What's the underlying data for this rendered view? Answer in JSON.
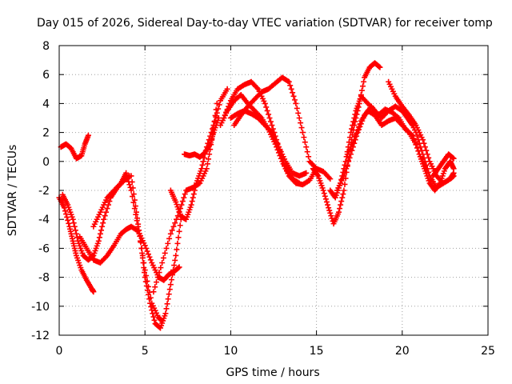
{
  "chart_data": {
    "type": "scatter",
    "title": "Day 015 of 2026, Sidereal Day-to-day VTEC variation (SDTVAR) for receiver tomp",
    "xlabel": "GPS time / hours",
    "ylabel": "SDTVAR / TECUs",
    "xlim": [
      0,
      25
    ],
    "ylim": [
      -12,
      8
    ],
    "xticks": [
      0,
      5,
      10,
      15,
      20,
      25
    ],
    "yticks": [
      -12,
      -10,
      -8,
      -6,
      -4,
      -2,
      0,
      2,
      4,
      6,
      8
    ],
    "grid": true,
    "marker": "plus",
    "color": "#ff0000",
    "series": [
      {
        "x": [
          0.0,
          0.3,
          0.6,
          0.8,
          1.0,
          1.3,
          1.6,
          1.9,
          2.0
        ],
        "y": [
          -2.5,
          -3.2,
          -4.5,
          -5.5,
          -6.5,
          -7.5,
          -8.2,
          -8.8,
          -9.0
        ]
      },
      {
        "x": [
          0.1,
          0.4,
          0.7,
          1.0,
          1.3,
          1.5,
          1.7
        ],
        "y": [
          1.0,
          1.2,
          0.9,
          0.2,
          0.4,
          1.2,
          1.8
        ]
      },
      {
        "x": [
          0.2,
          0.5,
          0.8,
          1.1,
          1.4,
          1.7,
          2.0,
          2.3,
          2.6,
          3.0,
          3.4,
          3.8,
          4.1
        ],
        "y": [
          -2.3,
          -3.0,
          -4.0,
          -5.5,
          -6.5,
          -6.8,
          -6.5,
          -5.5,
          -4.0,
          -2.5,
          -1.8,
          -1.3,
          -1.0
        ]
      },
      {
        "x": [
          1.2,
          1.6,
          2.0,
          2.4,
          2.8,
          3.2,
          3.6,
          3.9,
          4.2,
          4.6,
          5.0,
          5.4,
          5.8,
          6.1,
          6.4,
          6.7,
          7.0
        ],
        "y": [
          -5.2,
          -6.0,
          -6.8,
          -7.0,
          -6.5,
          -5.8,
          -5.0,
          -4.7,
          -4.5,
          -4.8,
          -5.8,
          -7.0,
          -8.0,
          -8.2,
          -7.8,
          -7.6,
          -7.3
        ]
      },
      {
        "x": [
          2.0,
          2.4,
          2.8,
          3.2,
          3.6,
          3.9,
          4.2,
          4.6,
          5.0,
          5.4,
          5.8,
          6.0
        ],
        "y": [
          -4.5,
          -3.5,
          -2.5,
          -2.0,
          -1.5,
          -0.8,
          -2.0,
          -4.5,
          -7.5,
          -9.8,
          -10.8,
          -11.0
        ]
      },
      {
        "x": [
          4.2,
          4.5,
          4.8,
          5.0,
          5.3,
          5.6,
          5.9,
          6.2,
          6.5,
          6.8,
          7.1
        ],
        "y": [
          -1.0,
          -3.5,
          -6.0,
          -8.0,
          -9.8,
          -11.2,
          -11.5,
          -10.5,
          -8.5,
          -6.5,
          -4.0
        ]
      },
      {
        "x": [
          5.5,
          6.0,
          6.5,
          7.0,
          7.4,
          7.8,
          8.2,
          8.6,
          8.9,
          9.2
        ],
        "y": [
          -9.0,
          -7.0,
          -5.0,
          -3.5,
          -2.0,
          -1.8,
          -1.5,
          -0.5,
          1.5,
          4.0
        ]
      },
      {
        "x": [
          6.5,
          6.8,
          7.1,
          7.4,
          7.7,
          8.0,
          8.3,
          8.6,
          9.0,
          9.4,
          9.8
        ],
        "y": [
          -2.0,
          -2.8,
          -3.8,
          -4.0,
          -3.0,
          -1.5,
          -0.5,
          1.0,
          2.5,
          4.2,
          5.0
        ]
      },
      {
        "x": [
          7.3,
          7.6,
          7.9,
          8.2,
          8.5,
          8.8,
          9.0,
          9.3
        ],
        "y": [
          0.5,
          0.4,
          0.5,
          0.3,
          0.6,
          1.2,
          2.0,
          3.0
        ]
      },
      {
        "x": [
          9.4,
          9.8,
          10.2,
          10.6,
          11.0,
          11.4,
          11.8,
          12.2,
          12.6,
          13.0,
          13.4,
          13.8,
          14.2,
          14.6,
          15.0,
          15.4,
          15.8
        ],
        "y": [
          2.5,
          3.5,
          4.2,
          4.6,
          4.0,
          3.5,
          3.0,
          2.2,
          1.2,
          0.0,
          -1.0,
          -1.5,
          -1.6,
          -1.3,
          -0.5,
          -0.7,
          -1.2
        ]
      },
      {
        "x": [
          9.6,
          10.0,
          10.4,
          10.8,
          11.2,
          11.6,
          12.0,
          12.4,
          12.8,
          13.2,
          13.6,
          14.0
        ],
        "y": [
          3.0,
          4.2,
          5.0,
          5.3,
          5.5,
          5.0,
          4.0,
          2.5,
          1.0,
          -0.5,
          -1.2,
          -1.5
        ]
      },
      {
        "x": [
          10.2,
          10.6,
          11.0,
          11.4,
          11.8,
          12.2,
          12.6,
          13.0,
          13.4,
          13.8,
          14.2,
          14.6,
          15.0
        ],
        "y": [
          2.5,
          3.2,
          3.8,
          4.3,
          4.8,
          5.0,
          5.4,
          5.8,
          5.5,
          4.0,
          2.0,
          0.0,
          -0.5
        ]
      },
      {
        "x": [
          10.0,
          10.4,
          10.8,
          11.2,
          11.6,
          12.0,
          12.4,
          12.8,
          13.2,
          13.6,
          14.0,
          14.4
        ],
        "y": [
          3.0,
          3.3,
          3.5,
          3.3,
          3.0,
          2.5,
          2.0,
          1.0,
          0.0,
          -0.8,
          -1.0,
          -0.8
        ]
      },
      {
        "x": [
          14.8,
          15.1,
          15.4,
          15.7,
          16.0,
          16.3,
          16.6,
          16.9,
          17.2,
          17.5,
          17.8,
          18.1,
          18.4,
          18.7
        ],
        "y": [
          -0.5,
          -1.0,
          -2.0,
          -3.2,
          -4.3,
          -3.5,
          -2.0,
          0.5,
          2.5,
          4.0,
          5.8,
          6.5,
          6.8,
          6.5
        ]
      },
      {
        "x": [
          15.8,
          16.1,
          16.4,
          16.7,
          17.0,
          17.3,
          17.6,
          18.0,
          18.4,
          18.8,
          19.2,
          19.6,
          20.0,
          20.3,
          20.6
        ],
        "y": [
          -2.0,
          -2.5,
          -1.5,
          0.0,
          2.0,
          3.5,
          4.5,
          4.0,
          3.5,
          3.0,
          3.5,
          3.8,
          3.5,
          3.0,
          2.5
        ]
      },
      {
        "x": [
          16.2,
          16.6,
          17.0,
          17.4,
          17.8,
          18.2,
          18.6,
          19.0,
          19.4,
          19.8,
          20.2,
          20.6,
          21.0,
          21.4
        ],
        "y": [
          -2.0,
          -1.0,
          0.5,
          2.0,
          3.2,
          3.8,
          3.2,
          3.6,
          3.4,
          3.0,
          2.2,
          1.8,
          0.5,
          -0.5
        ]
      },
      {
        "x": [
          16.8,
          17.2,
          17.6,
          18.0,
          18.4,
          18.8,
          19.2,
          19.6,
          20.0,
          20.4,
          20.8
        ],
        "y": [
          0.5,
          1.5,
          2.8,
          3.5,
          3.2,
          2.5,
          2.8,
          3.0,
          2.5,
          2.0,
          1.2
        ]
      },
      {
        "x": [
          19.2,
          19.6,
          20.0,
          20.4,
          20.8,
          21.2,
          21.6,
          22.0,
          22.4,
          22.8,
          23.0
        ],
        "y": [
          5.5,
          4.5,
          3.8,
          3.0,
          2.0,
          0.5,
          -1.0,
          -1.8,
          -1.5,
          -1.2,
          -1.0
        ]
      },
      {
        "x": [
          20.0,
          20.4,
          20.8,
          21.2,
          21.6,
          22.0,
          22.4,
          22.8,
          23.0
        ],
        "y": [
          3.8,
          3.2,
          2.5,
          1.5,
          0.0,
          -1.0,
          -1.5,
          -1.2,
          -0.8
        ]
      },
      {
        "x": [
          21.0,
          21.3,
          21.6,
          21.9,
          22.2,
          22.5,
          22.8,
          23.0
        ],
        "y": [
          0.5,
          -0.5,
          -1.5,
          -2.0,
          -1.5,
          -0.5,
          0.0,
          -0.5
        ]
      },
      {
        "x": [
          21.8,
          22.1,
          22.4,
          22.7,
          23.0
        ],
        "y": [
          -1.0,
          -0.5,
          0.0,
          0.5,
          0.2
        ]
      }
    ]
  }
}
